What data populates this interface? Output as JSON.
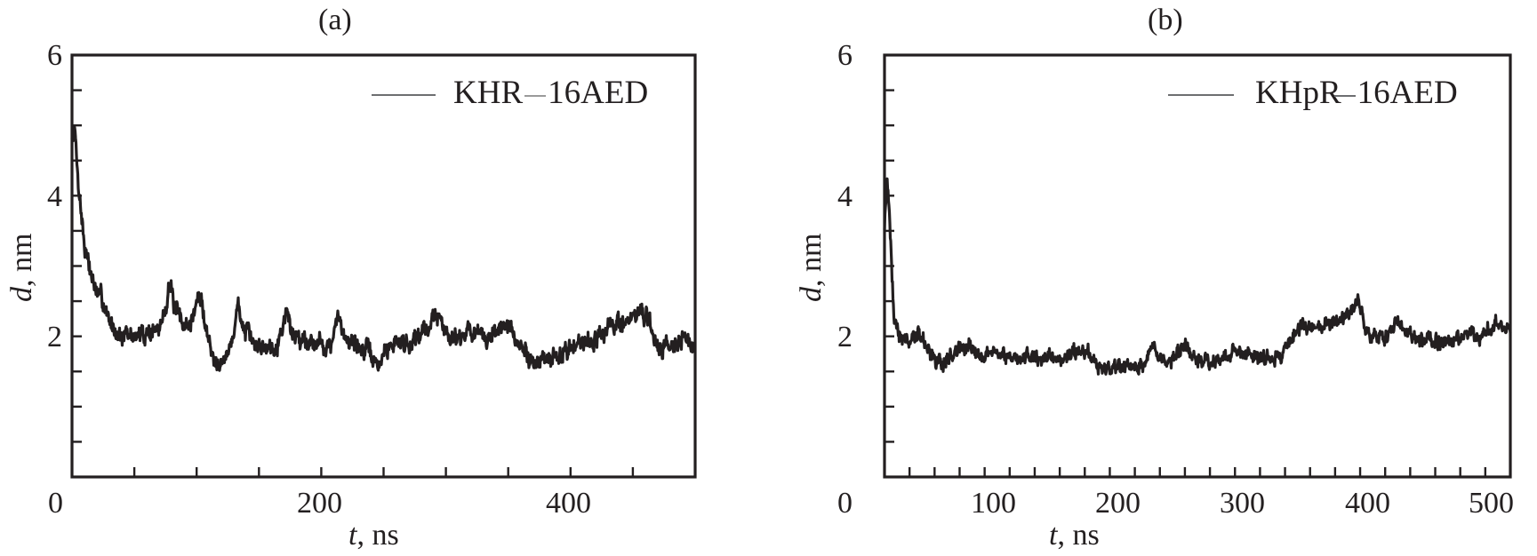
{
  "chart_data": [
    {
      "type": "line",
      "panel_label": "(a)",
      "title": "(a)",
      "xlabel": "t, ns",
      "xlabel_var": "t",
      "xlabel_unit": ", ns",
      "ylabel": "d, nm",
      "ylabel_var": "d",
      "ylabel_unit": ", nm",
      "xlim": [
        0,
        500
      ],
      "ylim": [
        0,
        6
      ],
      "x_tick_labels": [
        "0",
        "200",
        "400"
      ],
      "x_tick_values": [
        0,
        200,
        400
      ],
      "x_minor_step": 50,
      "y_tick_labels": [
        "2",
        "4",
        "6"
      ],
      "y_tick_values": [
        2,
        4,
        6
      ],
      "y_minor_step": 0.5,
      "grid": false,
      "legend_position": "upper right",
      "series": [
        {
          "name": "KHR—16AED",
          "color": "#231f20",
          "noise": 0.12,
          "x": [
            0,
            2,
            5,
            10,
            15,
            20,
            25,
            30,
            35,
            40,
            50,
            60,
            70,
            75,
            78,
            82,
            88,
            95,
            100,
            103,
            108,
            112,
            118,
            125,
            130,
            133,
            138,
            145,
            155,
            165,
            172,
            178,
            190,
            200,
            208,
            213,
            220,
            230,
            240,
            245,
            250,
            260,
            270,
            280,
            288,
            292,
            300,
            310,
            320,
            330,
            340,
            348,
            355,
            362,
            370,
            380,
            390,
            400,
            410,
            420,
            430,
            440,
            450,
            456,
            462,
            470,
            480,
            490,
            500
          ],
          "values": [
            4.8,
            5.0,
            4.2,
            3.3,
            2.9,
            2.6,
            2.5,
            2.2,
            2.1,
            2.0,
            2.0,
            2.05,
            2.1,
            2.4,
            2.8,
            2.4,
            2.2,
            2.15,
            2.5,
            2.55,
            2.1,
            1.75,
            1.65,
            1.7,
            2.1,
            2.45,
            2.1,
            1.9,
            1.85,
            1.9,
            2.35,
            2.0,
            1.95,
            1.9,
            1.85,
            2.25,
            2.0,
            1.85,
            1.75,
            1.55,
            1.75,
            1.95,
            1.9,
            2.05,
            2.2,
            2.35,
            2.05,
            2.0,
            2.1,
            1.95,
            2.05,
            2.2,
            1.95,
            1.8,
            1.65,
            1.65,
            1.7,
            1.85,
            1.95,
            1.95,
            2.1,
            2.2,
            2.25,
            2.4,
            2.2,
            1.85,
            1.9,
            1.95,
            1.85
          ]
        }
      ]
    },
    {
      "type": "line",
      "panel_label": "(b)",
      "title": "(b)",
      "xlabel": "t, ns",
      "xlabel_var": "t",
      "xlabel_unit": ", ns",
      "ylabel": "d, nm",
      "ylabel_var": "d",
      "ylabel_unit": ", nm",
      "xlim": [
        0,
        500
      ],
      "ylim": [
        0,
        6
      ],
      "x_tick_labels": [
        "0",
        "100",
        "200",
        "300",
        "400",
        "500"
      ],
      "x_tick_values": [
        0,
        100,
        200,
        300,
        400,
        500
      ],
      "x_minor_step": 20,
      "y_tick_labels": [
        "2",
        "4",
        "6"
      ],
      "y_tick_values": [
        2,
        4,
        6
      ],
      "y_minor_step": 0.5,
      "grid": false,
      "legend_position": "upper right",
      "series": [
        {
          "name": "KHpR—16AED",
          "color": "#231f20",
          "noise": 0.1,
          "x": [
            0,
            2,
            4,
            6,
            8,
            12,
            20,
            30,
            38,
            45,
            52,
            60,
            70,
            80,
            90,
            100,
            110,
            120,
            130,
            140,
            150,
            158,
            165,
            172,
            180,
            190,
            200,
            208,
            214,
            220,
            228,
            236,
            240,
            246,
            255,
            265,
            275,
            285,
            295,
            305,
            315,
            322,
            328,
            335,
            345,
            355,
            365,
            372,
            378,
            384,
            390,
            398,
            405,
            410,
            418,
            425,
            435,
            445,
            455,
            465,
            475,
            485,
            492,
            500
          ],
          "values": [
            3.6,
            4.3,
            3.8,
            2.8,
            2.2,
            2.0,
            1.95,
            2.0,
            1.7,
            1.6,
            1.7,
            1.85,
            1.8,
            1.75,
            1.8,
            1.7,
            1.7,
            1.72,
            1.68,
            1.65,
            1.8,
            1.75,
            1.7,
            1.55,
            1.5,
            1.55,
            1.55,
            1.6,
            1.85,
            1.75,
            1.6,
            1.8,
            1.9,
            1.65,
            1.6,
            1.65,
            1.75,
            1.8,
            1.75,
            1.7,
            1.7,
            1.85,
            2.1,
            2.15,
            2.1,
            2.2,
            2.2,
            2.3,
            2.5,
            2.15,
            2.0,
            1.95,
            2.1,
            2.2,
            2.0,
            1.95,
            1.95,
            1.9,
            1.95,
            2.05,
            2.0,
            2.1,
            2.2,
            2.1
          ]
        }
      ]
    }
  ],
  "panels": {
    "a": {
      "title": "(a)",
      "legend": {
        "prefix": "KHR",
        "suffix": "16AED"
      },
      "x_ticks": [
        "0",
        "200",
        "400"
      ],
      "y_ticks": [
        "2",
        "4",
        "6"
      ],
      "xlabel": {
        "var": "t",
        "unit": ", ns"
      },
      "ylabel": {
        "var": "d",
        "unit": ", nm"
      }
    },
    "b": {
      "title": "(b)",
      "legend": {
        "prefix": "KHpR",
        "suffix": "16AED"
      },
      "x_ticks": [
        "0",
        "100",
        "200",
        "300",
        "400",
        "500"
      ],
      "y_ticks": [
        "2",
        "4",
        "6"
      ],
      "xlabel": {
        "var": "t",
        "unit": ", ns"
      },
      "ylabel": {
        "var": "d",
        "unit": ", nm"
      }
    }
  }
}
